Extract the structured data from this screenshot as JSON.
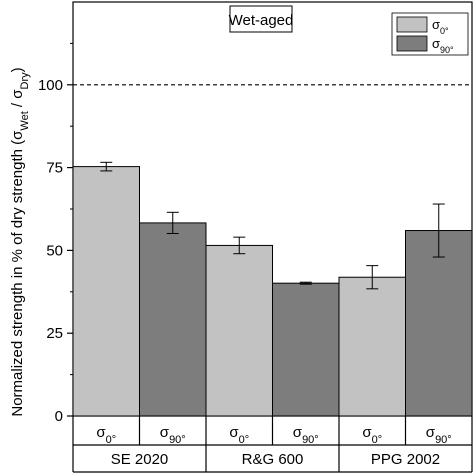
{
  "chart_data": {
    "type": "bar",
    "title": "Wet-aged",
    "ylabel_main": "Normalized strength in % of dry strength (σ",
    "ylabel_sub1": "Wet",
    "ylabel_mid": " / σ",
    "ylabel_sub2": "Dry",
    "ylabel_end": ")",
    "ylim": [
      0,
      125
    ],
    "yticks": [
      "0",
      "25",
      "50",
      "75",
      "100"
    ],
    "reference_line": {
      "value": 100,
      "style": "dashed"
    },
    "groups": [
      "SE 2020",
      "R&G 600",
      "PPG 2002"
    ],
    "series": [
      {
        "name_base": "σ",
        "name_sub": "0°",
        "color": "#c2c2c2",
        "values": [
          75.3,
          51.5,
          41.9
        ],
        "errors": [
          1.3,
          2.5,
          3.5
        ]
      },
      {
        "name_base": "σ",
        "name_sub": "90°",
        "color": "#7d7d7d",
        "values": [
          58.3,
          40.1,
          56.0
        ],
        "errors": [
          3.2,
          0.3,
          8.0
        ]
      }
    ],
    "legend_position": "top-right",
    "grid": false
  }
}
